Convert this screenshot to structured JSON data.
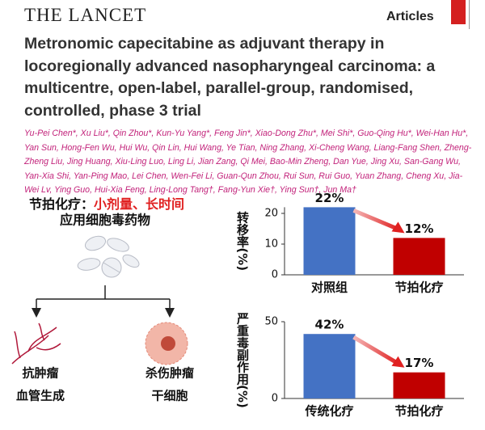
{
  "header": {
    "brand": "THE LANCET",
    "section": "Articles"
  },
  "title": "Metronomic capecitabine as adjuvant therapy in locoregionally advanced nasopharyngeal carcinoma: a multicentre, open-label, parallel-group, randomised, controlled, phase 3 trial",
  "authors": "Yu-Pei Chen*, Xu Liu*, Qin Zhou*, Kun-Yu Yang*, Feng Jin*, Xiao-Dong Zhu*, Mei Shi*, Guo-Qing Hu*, Wei-Han Hu*, Yan Sun, Hong-Fen Wu, Hui Wu, Qin Lin, Hui Wang, Ye Tian, Ning Zhang, Xi-Cheng Wang, Liang-Fang Shen, Zheng-Zheng Liu, Jing Huang, Xiu-Ling Luo, Ling Li, Jian Zang, Qi Mei, Bao-Min Zheng, Dan Yue, Jing Xu, San-Gang Wu, Yan-Xia Shi, Yan-Ping Mao, Lei Chen, Wen-Fei Li, Guan-Qun Zhou, Rui Sun, Rui Guo, Yuan Zhang, Cheng Xu, Jia-Wei Lv, Ying Guo, Hui-Xia Feng, Ling-Long Tang†, Fang-Yun Xie†, Ying Sun†, Jun Ma†",
  "infographic": {
    "heading": "节拍化疗：",
    "highlight": "小剂量、长时间",
    "subheading": "应用细胞毒药物",
    "outcomes": [
      [
        "抗肿瘤",
        "血管生成"
      ],
      [
        "杀伤肿瘤",
        "干细胞"
      ]
    ]
  },
  "chart_data": [
    {
      "type": "bar",
      "y_label": "转移率(%)",
      "categories": [
        "对照组",
        "节拍化疗"
      ],
      "values": [
        22,
        12
      ],
      "value_labels": [
        "22%",
        "12%"
      ],
      "colors": [
        "#4472c4",
        "#c00000"
      ],
      "ylim": [
        0,
        22
      ],
      "yticks": [
        0,
        10,
        20
      ]
    },
    {
      "type": "bar",
      "y_label": "严重毒副作用(%)",
      "categories": [
        "传统化疗",
        "节拍化疗"
      ],
      "values": [
        42,
        17
      ],
      "value_labels": [
        "42%",
        "17%"
      ],
      "colors": [
        "#4472c4",
        "#c00000"
      ],
      "ylim": [
        0,
        50
      ],
      "yticks": [
        0,
        50
      ]
    }
  ]
}
